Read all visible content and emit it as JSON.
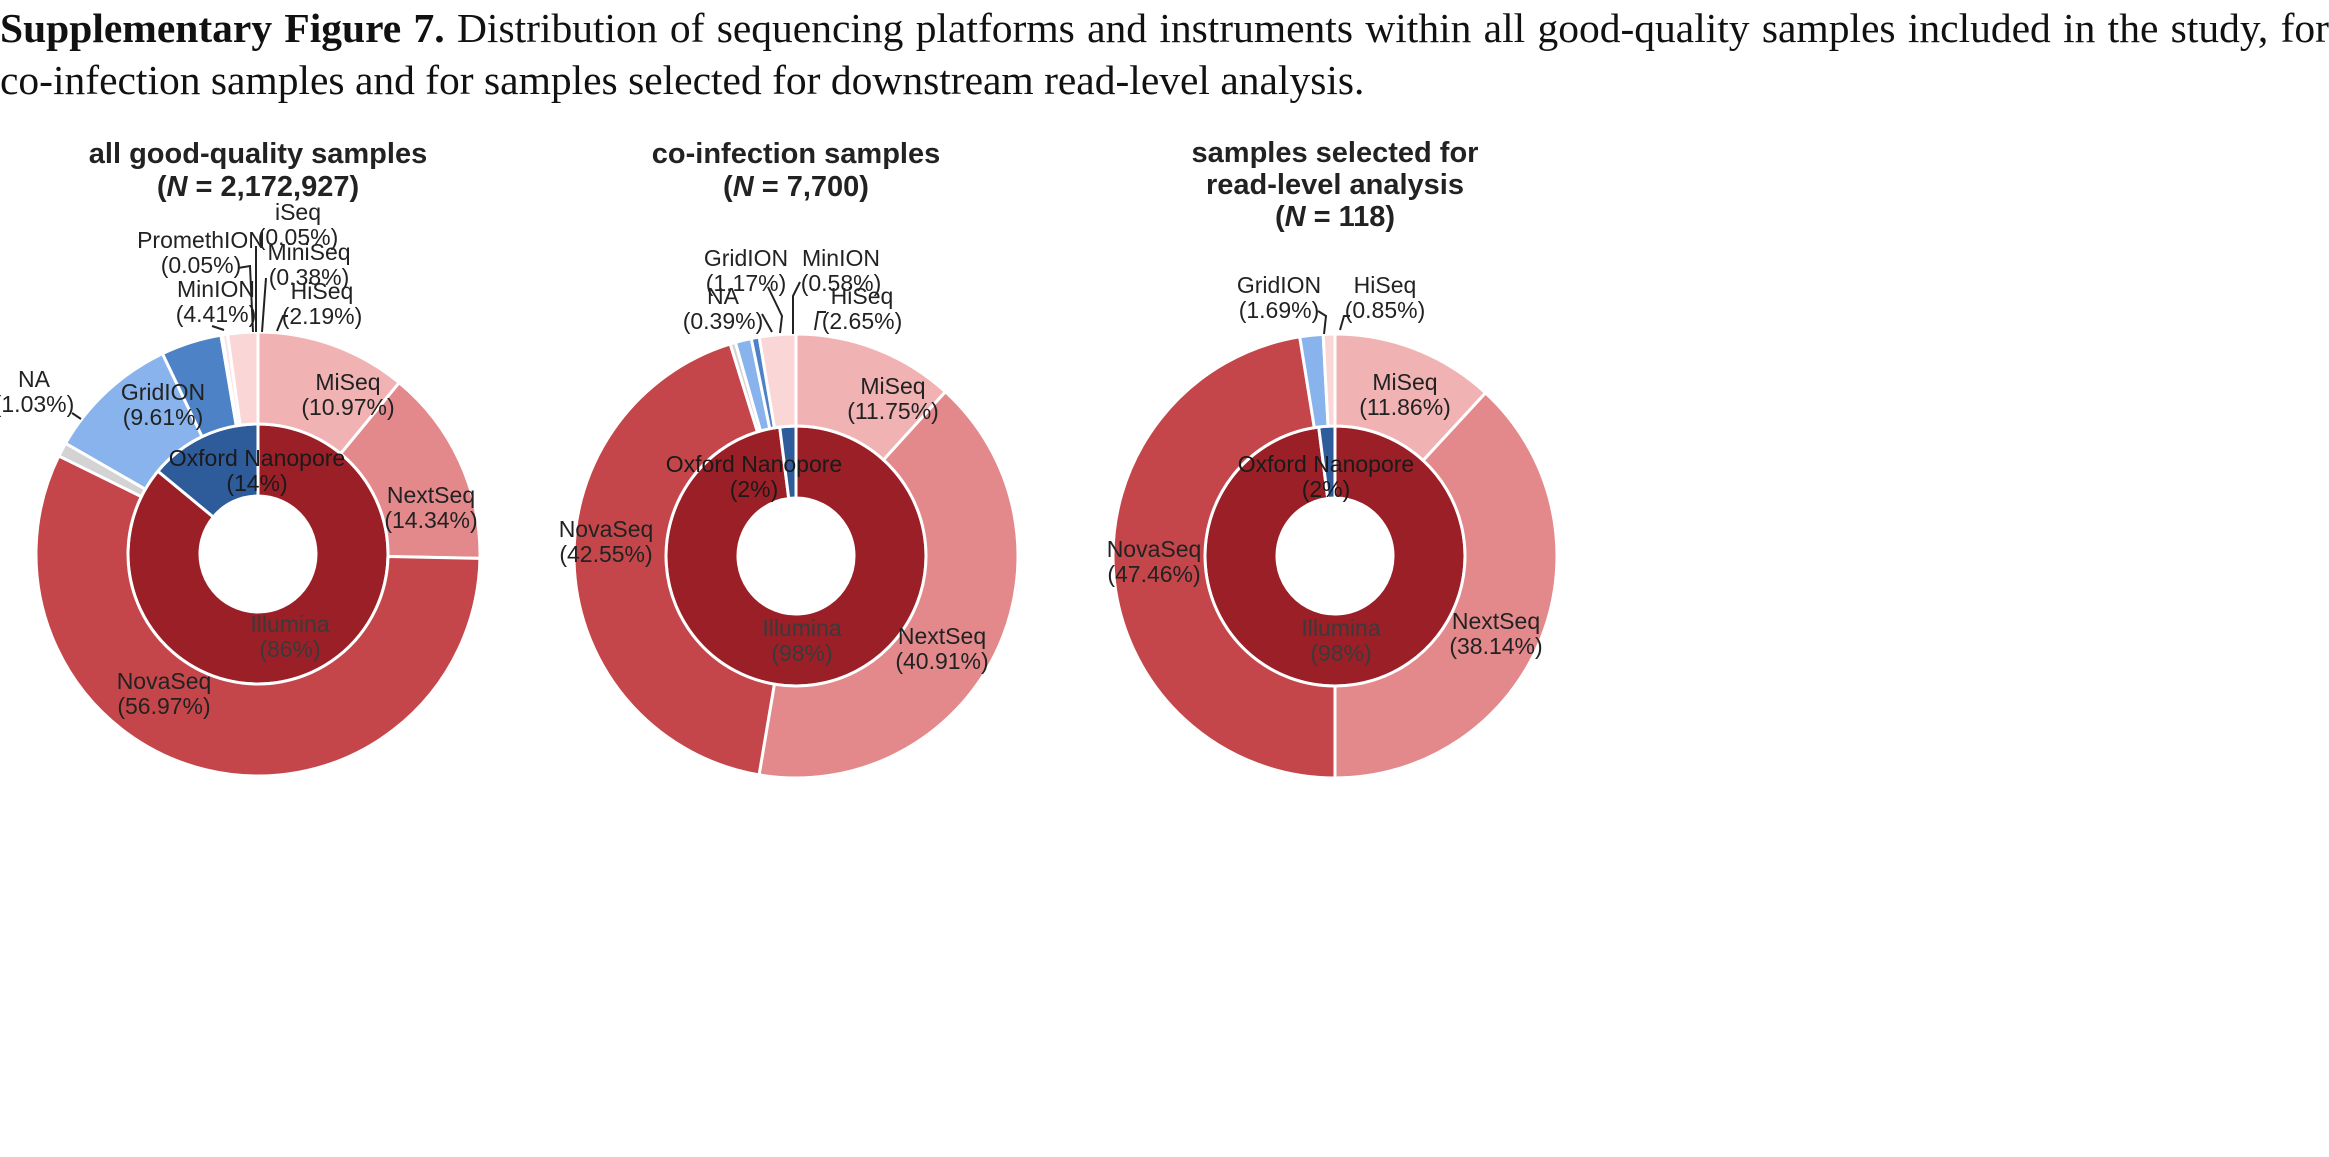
{
  "caption": {
    "label": "Supplementary Figure 7.",
    "text": "Distribution of sequencing platforms and instruments within all good-quality samples included in the study, for co-infection samples and for samples selected for downstream read-level analysis."
  },
  "colors": {
    "illumina_inner": "#9b1f27",
    "oxford_inner": "#2e5c9a",
    "NovaSeq": "#c4464a",
    "NextSeq": "#e3898c",
    "MiSeq": "#f0b2b3",
    "HiSeq": "#fbd6d6",
    "MiniSeq": "#fbe3e3",
    "iSeq": "#fdeaea",
    "PromethION": "#3b6fb3",
    "MinION": "#4e82c6",
    "GridION": "#88b3ec",
    "NA": "#d3d3d3"
  },
  "chart_data": [
    {
      "type": "pie",
      "title": "all good-quality samples",
      "n_label": "N",
      "n_value": "= 2,172,927)",
      "inner": [
        {
          "name": "Illumina",
          "value": 86,
          "label": "(86%)"
        },
        {
          "name": "Oxford Nanopore",
          "value": 14,
          "label": "(14%)"
        }
      ],
      "outer": [
        {
          "name": "MiSeq",
          "value": 10.97,
          "label": "(10.97%)"
        },
        {
          "name": "NextSeq",
          "value": 14.34,
          "label": "(14.34%)"
        },
        {
          "name": "NovaSeq",
          "value": 56.97,
          "label": "(56.97%)"
        },
        {
          "name": "NA",
          "value": 1.03,
          "label": "(1.03%)"
        },
        {
          "name": "GridION",
          "value": 9.61,
          "label": "(9.61%)"
        },
        {
          "name": "MinION",
          "value": 4.41,
          "label": "(4.41%)"
        },
        {
          "name": "PromethION",
          "value": 0.05,
          "label": "(0.05%)"
        },
        {
          "name": "iSeq",
          "value": 0.05,
          "label": "(0.05%)"
        },
        {
          "name": "MiniSeq",
          "value": 0.38,
          "label": "(0.38%)"
        },
        {
          "name": "HiSeq",
          "value": 2.19,
          "label": "(2.19%)"
        }
      ]
    },
    {
      "type": "pie",
      "title": "co-infection samples",
      "n_label": "N",
      "n_value": "= 7,700)",
      "inner": [
        {
          "name": "Illumina",
          "value": 98,
          "label": "(98%)"
        },
        {
          "name": "Oxford Nanopore",
          "value": 2,
          "label": "(2%)"
        }
      ],
      "outer": [
        {
          "name": "MiSeq",
          "value": 11.75,
          "label": "(11.75%)"
        },
        {
          "name": "NextSeq",
          "value": 40.91,
          "label": "(40.91%)"
        },
        {
          "name": "NovaSeq",
          "value": 42.55,
          "label": "(42.55%)"
        },
        {
          "name": "NA",
          "value": 0.39,
          "label": "(0.39%)"
        },
        {
          "name": "GridION",
          "value": 1.17,
          "label": "(1.17%)"
        },
        {
          "name": "MinION",
          "value": 0.58,
          "label": "(0.58%)"
        },
        {
          "name": "HiSeq",
          "value": 2.65,
          "label": "(2.65%)"
        }
      ]
    },
    {
      "type": "pie",
      "title": "samples selected for read-level analysis",
      "title_lines": [
        "samples selected for",
        "read-level analysis"
      ],
      "n_label": "N",
      "n_value": "= 118)",
      "inner": [
        {
          "name": "Illumina",
          "value": 98,
          "label": "(98%)"
        },
        {
          "name": "Oxford Nanopore",
          "value": 2,
          "label": "(2%)"
        }
      ],
      "outer": [
        {
          "name": "MiSeq",
          "value": 11.86,
          "label": "(11.86%)"
        },
        {
          "name": "NextSeq",
          "value": 38.14,
          "label": "(38.14%)"
        },
        {
          "name": "NovaSeq",
          "value": 47.46,
          "label": "(47.46%)"
        },
        {
          "name": "GridION",
          "value": 1.69,
          "label": "(1.69%)"
        },
        {
          "name": "HiSeq",
          "value": 0.85,
          "label": "(0.85%)"
        }
      ]
    }
  ]
}
